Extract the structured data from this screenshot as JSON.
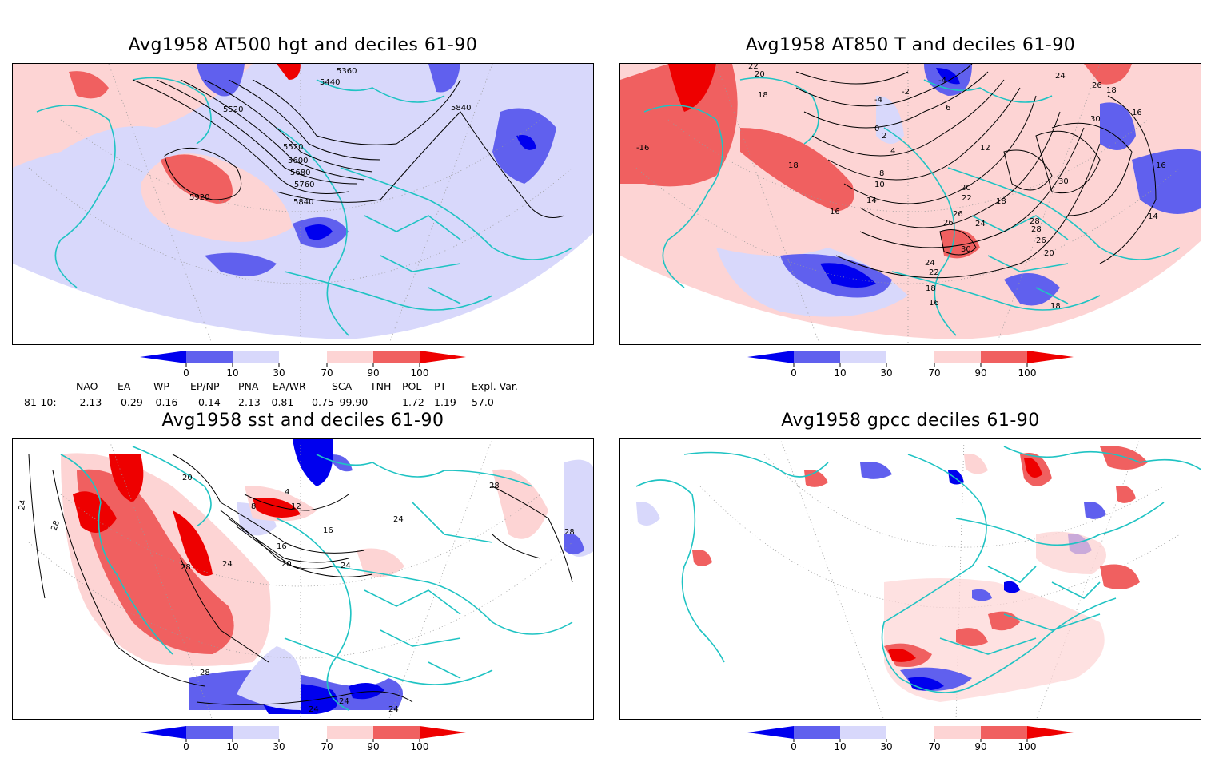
{
  "panels": {
    "hgt": {
      "title": "Avg1958 AT500 hgt and deciles 61-90",
      "contour_labels": [
        "5360",
        "5440",
        "5520",
        "5520",
        "5600",
        "5680",
        "5760",
        "5840",
        "5840",
        "5920"
      ]
    },
    "t850": {
      "title": "Avg1958 AT850 T and deciles 61-90",
      "contour_labels": [
        "22",
        "20",
        "18",
        "-16",
        "-4",
        "-4",
        "-2",
        "0",
        "2",
        "6",
        "4",
        "8",
        "10",
        "12",
        "14",
        "16",
        "16",
        "18",
        "18",
        "20",
        "22",
        "24",
        "26",
        "26",
        "28",
        "30",
        "30",
        "30",
        "26",
        "24",
        "22",
        "20",
        "18",
        "16",
        "18",
        "14",
        "16",
        "18",
        "24",
        "26",
        "28"
      ]
    },
    "sst": {
      "title": "Avg1958 sst and deciles 61-90",
      "contour_labels": [
        "24",
        "28",
        "20",
        "28",
        "28",
        "8",
        "12",
        "4",
        "16",
        "16",
        "20",
        "24",
        "24",
        "24",
        "28",
        "28",
        "24",
        "24",
        "24"
      ]
    },
    "gpcc": {
      "title": "Avg1958 gpcc deciles 61-90"
    }
  },
  "colorbar": {
    "ticks": [
      "0",
      "10",
      "30",
      "70",
      "90",
      "100"
    ],
    "colors": [
      "#0000ee",
      "#6060ee",
      "#d8d8fb",
      "#ffffff",
      "#fdd4d4",
      "#f06060",
      "#ee0000"
    ]
  },
  "indices": {
    "headers": [
      "NAO",
      "EA",
      "WP",
      "EP/NP",
      "PNA",
      "EA/WR",
      "SCA",
      "TNH",
      "POL",
      "PT",
      "Expl. Var."
    ],
    "row_label": "81-10:",
    "values": [
      "-2.13",
      "0.29",
      "-0.16",
      "0.14",
      "2.13",
      "-0.81",
      "0.75",
      "-99.90",
      "1.72",
      "1.19",
      "57.0"
    ]
  },
  "map_colors": {
    "coast": "#1fc3c3",
    "contour": "#000000",
    "grid": "#999999"
  }
}
